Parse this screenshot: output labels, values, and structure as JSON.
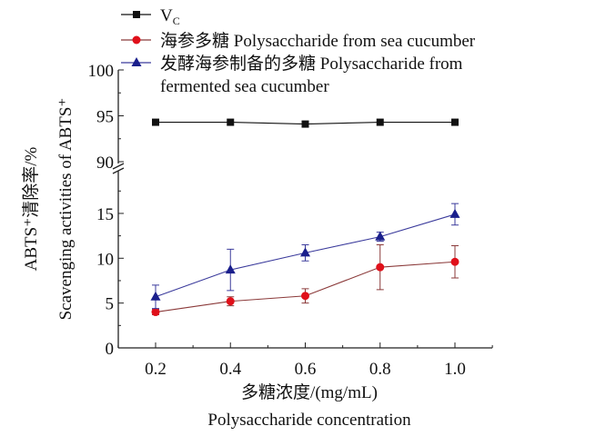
{
  "chart_data": {
    "type": "line",
    "title": "",
    "xlabel_cn": "多糖浓度/(mg/mL)",
    "xlabel_en": "Polysaccharide concentration",
    "ylabel_cn": "ABTS⁺清除率/%",
    "ylabel_en": "Scavenging activities of ABTS⁺",
    "x": [
      0.2,
      0.4,
      0.6,
      0.8,
      1.0
    ],
    "x_ticks": [
      "0.2",
      "0.4",
      "0.6",
      "0.8",
      "1.0"
    ],
    "xlim": [
      0.1,
      1.1
    ],
    "y_broken_axis": true,
    "ylim_lower": [
      0,
      18
    ],
    "ylim_upper": [
      90,
      100
    ],
    "y_ticks_lower": [
      "0",
      "5",
      "10",
      "15"
    ],
    "y_ticks_upper": [
      "90",
      "95",
      "100"
    ],
    "legend_position": "top",
    "series": [
      {
        "name": "V",
        "name_sub": "C",
        "color": "#111111",
        "marker": "square",
        "values": [
          94.3,
          94.3,
          94.1,
          94.3,
          94.3
        ],
        "errors": [
          0,
          0,
          0,
          0,
          0
        ]
      },
      {
        "name": "海参多糖 Polysaccharide from sea cucumber",
        "color": "#e0101a",
        "line_color": "#8b3a3a",
        "marker": "circle",
        "values": [
          4.0,
          5.2,
          5.8,
          9.0,
          9.6
        ],
        "errors": [
          0.3,
          0.5,
          0.8,
          2.5,
          1.8
        ]
      },
      {
        "name": "发酵海参制备的多糖 Polysaccharide from",
        "name_line2": "fermented sea cucumber",
        "color": "#1a1f8c",
        "line_color": "#3b3b9c",
        "marker": "triangle",
        "values": [
          5.7,
          8.7,
          10.6,
          12.4,
          14.9
        ],
        "errors": [
          1.3,
          2.3,
          0.9,
          0.5,
          1.2
        ]
      }
    ]
  }
}
